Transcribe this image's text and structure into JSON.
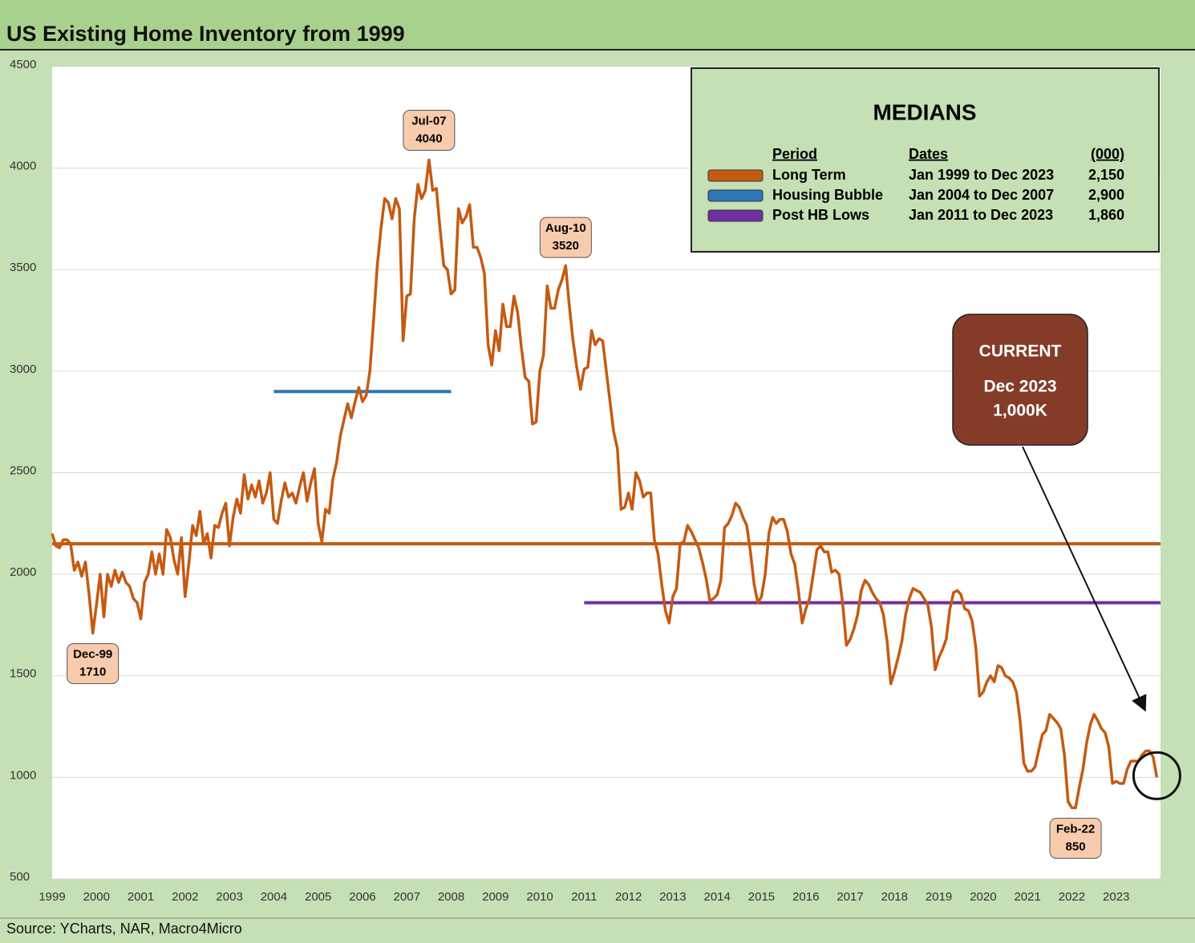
{
  "chart_data": {
    "type": "line",
    "title": "US Existing Home Inventory from 1999",
    "source": "Source: YCharts, NAR, Macro4Micro",
    "color": "#c55a11",
    "ylim": [
      500,
      4500
    ],
    "yticks": [
      500,
      1000,
      1500,
      2000,
      2500,
      3000,
      3500,
      4000,
      4500
    ],
    "grid": true,
    "categories": [
      "1999",
      null,
      null,
      null,
      null,
      null,
      null,
      null,
      null,
      null,
      null,
      null,
      "2000",
      null,
      null,
      null,
      null,
      null,
      null,
      null,
      null,
      null,
      null,
      null,
      "2001",
      null,
      null,
      null,
      null,
      null,
      null,
      null,
      null,
      null,
      null,
      null,
      "2002",
      null,
      null,
      null,
      null,
      null,
      null,
      null,
      null,
      null,
      null,
      null,
      "2003",
      null,
      null,
      null,
      null,
      null,
      null,
      null,
      null,
      null,
      null,
      null,
      "2004",
      null,
      null,
      null,
      null,
      null,
      null,
      null,
      null,
      null,
      null,
      null,
      "2005",
      null,
      null,
      null,
      null,
      null,
      null,
      null,
      null,
      null,
      null,
      null,
      "2006",
      null,
      null,
      null,
      null,
      null,
      null,
      null,
      null,
      null,
      null,
      null,
      "2007",
      null,
      null,
      null,
      null,
      null,
      null,
      null,
      null,
      null,
      null,
      null,
      "2008",
      null,
      null,
      null,
      null,
      null,
      null,
      null,
      null,
      null,
      null,
      null,
      "2009",
      null,
      null,
      null,
      null,
      null,
      null,
      null,
      null,
      null,
      null,
      null,
      "2010",
      null,
      null,
      null,
      null,
      null,
      null,
      null,
      null,
      null,
      null,
      null,
      "2011",
      null,
      null,
      null,
      null,
      null,
      null,
      null,
      null,
      null,
      null,
      null,
      "2012",
      null,
      null,
      null,
      null,
      null,
      null,
      null,
      null,
      null,
      null,
      null,
      "2013",
      null,
      null,
      null,
      null,
      null,
      null,
      null,
      null,
      null,
      null,
      null,
      "2014",
      null,
      null,
      null,
      null,
      null,
      null,
      null,
      null,
      null,
      null,
      null,
      "2015",
      null,
      null,
      null,
      null,
      null,
      null,
      null,
      null,
      null,
      null,
      null,
      "2016",
      null,
      null,
      null,
      null,
      null,
      null,
      null,
      null,
      null,
      null,
      null,
      "2017",
      null,
      null,
      null,
      null,
      null,
      null,
      null,
      null,
      null,
      null,
      null,
      "2018",
      null,
      null,
      null,
      null,
      null,
      null,
      null,
      null,
      null,
      null,
      null,
      "2019",
      null,
      null,
      null,
      null,
      null,
      null,
      null,
      null,
      null,
      null,
      null,
      "2020",
      null,
      null,
      null,
      null,
      null,
      null,
      null,
      null,
      null,
      null,
      null,
      "2021",
      null,
      null,
      null,
      null,
      null,
      null,
      null,
      null,
      null,
      null,
      null,
      "2022",
      null,
      null,
      null,
      null,
      null,
      null,
      null,
      null,
      null,
      null,
      null,
      "2023",
      null,
      null,
      null,
      null,
      null,
      null,
      null,
      null,
      null,
      null,
      null
    ],
    "values": [
      2200,
      2140,
      2130,
      2170,
      2170,
      2150,
      2020,
      2060,
      1990,
      2060,
      1900,
      1710,
      1850,
      2000,
      1790,
      2000,
      1940,
      2020,
      1960,
      2010,
      1960,
      1940,
      1880,
      1860,
      1780,
      1960,
      2000,
      2110,
      2000,
      2100,
      2000,
      2220,
      2180,
      2070,
      2000,
      2180,
      1890,
      2050,
      2240,
      2190,
      2310,
      2150,
      2200,
      2080,
      2240,
      2230,
      2300,
      2350,
      2140,
      2280,
      2370,
      2300,
      2490,
      2370,
      2440,
      2380,
      2460,
      2350,
      2400,
      2500,
      2270,
      2250,
      2360,
      2450,
      2380,
      2400,
      2350,
      2430,
      2500,
      2360,
      2450,
      2520,
      2250,
      2160,
      2320,
      2300,
      2470,
      2550,
      2680,
      2760,
      2840,
      2770,
      2850,
      2920,
      2850,
      2880,
      3000,
      3250,
      3520,
      3700,
      3850,
      3830,
      3750,
      3850,
      3800,
      3150,
      3370,
      3380,
      3750,
      3920,
      3850,
      3890,
      4040,
      3890,
      3900,
      3700,
      3520,
      3500,
      3380,
      3400,
      3800,
      3730,
      3760,
      3820,
      3610,
      3610,
      3560,
      3480,
      3130,
      3030,
      3200,
      3100,
      3330,
      3220,
      3220,
      3370,
      3290,
      3120,
      2970,
      2950,
      2740,
      2750,
      3000,
      3080,
      3420,
      3310,
      3310,
      3400,
      3450,
      3520,
      3320,
      3150,
      3020,
      2910,
      3010,
      3020,
      3200,
      3130,
      3160,
      3150,
      3000,
      2850,
      2700,
      2620,
      2320,
      2330,
      2400,
      2320,
      2500,
      2460,
      2380,
      2400,
      2400,
      2170,
      2100,
      1950,
      1820,
      1760,
      1890,
      1930,
      2150,
      2160,
      2240,
      2210,
      2170,
      2130,
      2060,
      1980,
      1870,
      1880,
      1900,
      1970,
      2230,
      2250,
      2290,
      2350,
      2330,
      2280,
      2240,
      2110,
      1950,
      1860,
      1890,
      2000,
      2200,
      2280,
      2250,
      2270,
      2270,
      2210,
      2100,
      2050,
      1920,
      1760,
      1830,
      1880,
      2000,
      2120,
      2140,
      2110,
      2110,
      2010,
      2020,
      2000,
      1850,
      1650,
      1680,
      1730,
      1800,
      1920,
      1970,
      1950,
      1910,
      1880,
      1860,
      1800,
      1670,
      1460,
      1520,
      1590,
      1670,
      1800,
      1880,
      1930,
      1920,
      1910,
      1880,
      1850,
      1740,
      1530,
      1590,
      1630,
      1680,
      1830,
      1910,
      1920,
      1900,
      1830,
      1820,
      1770,
      1640,
      1400,
      1420,
      1470,
      1500,
      1470,
      1550,
      1540,
      1500,
      1490,
      1470,
      1420,
      1280,
      1070,
      1030,
      1030,
      1050,
      1130,
      1210,
      1230,
      1310,
      1290,
      1270,
      1240,
      1110,
      880,
      850,
      850,
      950,
      1040,
      1170,
      1260,
      1310,
      1280,
      1240,
      1220,
      1150,
      970,
      980,
      970,
      970,
      1040,
      1080,
      1080,
      1080,
      1110,
      1130,
      1130,
      1100,
      1000
    ],
    "annotations": [
      {
        "label": "Dec-99",
        "value": 1710
      },
      {
        "label": "Jul-07",
        "value": 4040
      },
      {
        "label": "Aug-10",
        "value": 3520
      },
      {
        "label": "Feb-22",
        "value": 850
      }
    ],
    "medians": {
      "title": "MEDIANS",
      "headers": [
        "Period",
        "Dates",
        "(000)"
      ],
      "rows": [
        {
          "period": "Long Term",
          "dates": "Jan 1999 to Dec 2023",
          "value": 2150,
          "value_label": "2,150",
          "color": "#c55a11"
        },
        {
          "period": "Housing Bubble",
          "dates": "Jan 2004 to Dec 2007",
          "value": 2900,
          "value_label": "2,900",
          "color": "#2e75b6"
        },
        {
          "period": "Post HB Lows",
          "dates": "Jan 2011 to Dec 2023",
          "value": 1860,
          "value_label": "1,860",
          "color": "#7030a0"
        }
      ]
    },
    "current": {
      "title": "CURRENT",
      "date": "Dec 2023",
      "value": 1000,
      "value_label": "1,000K"
    }
  }
}
